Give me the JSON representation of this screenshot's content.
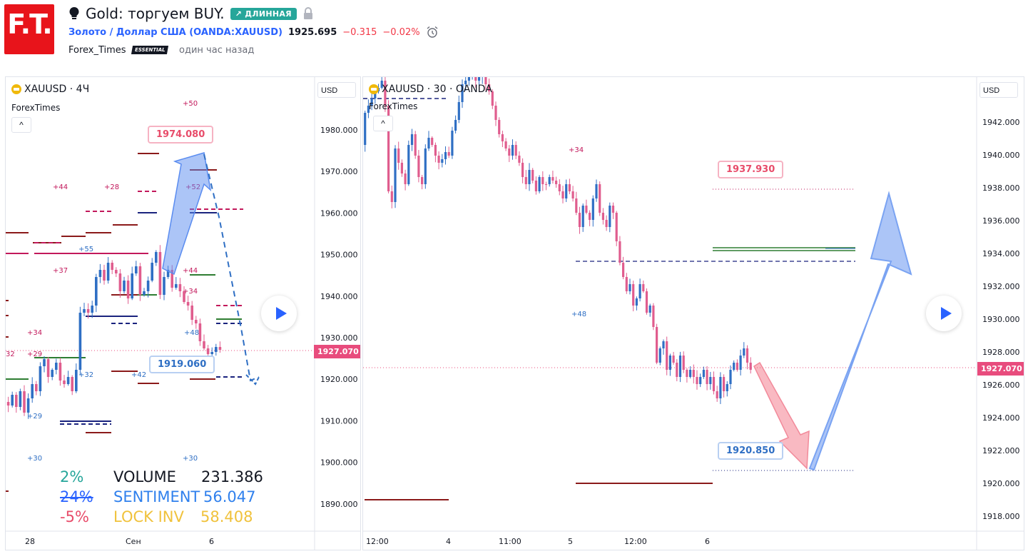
{
  "header": {
    "logo_text": "F.T.",
    "idea_title": "Gold: торгуем BUY.",
    "badge_long": "↗ ДЛИННАЯ",
    "symbol_name": "Золото / Доллар США",
    "symbol_code": "(OANDA:XAUUSD)",
    "price": "1925.695",
    "change": "−0.315",
    "change_pct": "−0.02%",
    "author": "Forex_Times",
    "author_badge": "ESSENTIAL",
    "time_ago": "один час назад"
  },
  "left_chart": {
    "title": "XAUUSD · 4Ч",
    "author_label": "ForexTimes",
    "collapse_icon": "^",
    "currency": "USD",
    "price_tag": "1927.070",
    "callout_top": "1974.080",
    "callout_bottom": "1919.060",
    "y_labels": [
      "1980.000",
      "1970.000",
      "1960.000",
      "1950.000",
      "1940.000",
      "1930.000",
      "1920.000",
      "1910.000",
      "1900.000",
      "1890.000"
    ],
    "x_labels": [
      "28",
      "Сен",
      "6"
    ],
    "level_labels": {
      "l50": "+50",
      "l44a": "+44",
      "l28": "+28",
      "l52": "+52",
      "l55": "+55",
      "l37": "+37",
      "l44b": "+44",
      "l34a": "+34",
      "l34b": "+34",
      "l48": "+48",
      "l32a": "32",
      "l29a": "+29",
      "l32b": "+32",
      "l42": "+42",
      "l29b": "+29",
      "l30a": "+30",
      "l30b": "+30"
    },
    "stats": {
      "p1": "2%",
      "p2": "24%",
      "p3": "-5%",
      "volume_label": "VOLUME",
      "volume_value": "231.386",
      "sentiment_label": "SENTIMENT",
      "sentiment_value": "56.047",
      "lockinv_label": "LOCK INV",
      "lockinv_value": "58.408"
    }
  },
  "right_chart": {
    "title": "XAUUSD · 30 · OANDA",
    "author_label": "ForexTimes",
    "collapse_icon": "^",
    "currency": "USD",
    "price_tag": "1927.070",
    "callout_top": "1937.930",
    "callout_bottom": "1920.850",
    "y_labels": [
      "1942.000",
      "1940.000",
      "1938.000",
      "1936.000",
      "1934.000",
      "1932.000",
      "1930.000",
      "1928.000",
      "1926.000",
      "1924.000",
      "1922.000",
      "1920.000",
      "1918.000"
    ],
    "x_labels": [
      "12:00",
      "4",
      "11:00",
      "5",
      "12:00",
      "6"
    ],
    "level_labels": {
      "l34": "+34",
      "l48": "+48"
    }
  },
  "colors": {
    "up": "#2f6fc4",
    "down": "#e05d8e",
    "brand": "#e8141b",
    "long_badge": "#26a69a"
  }
}
